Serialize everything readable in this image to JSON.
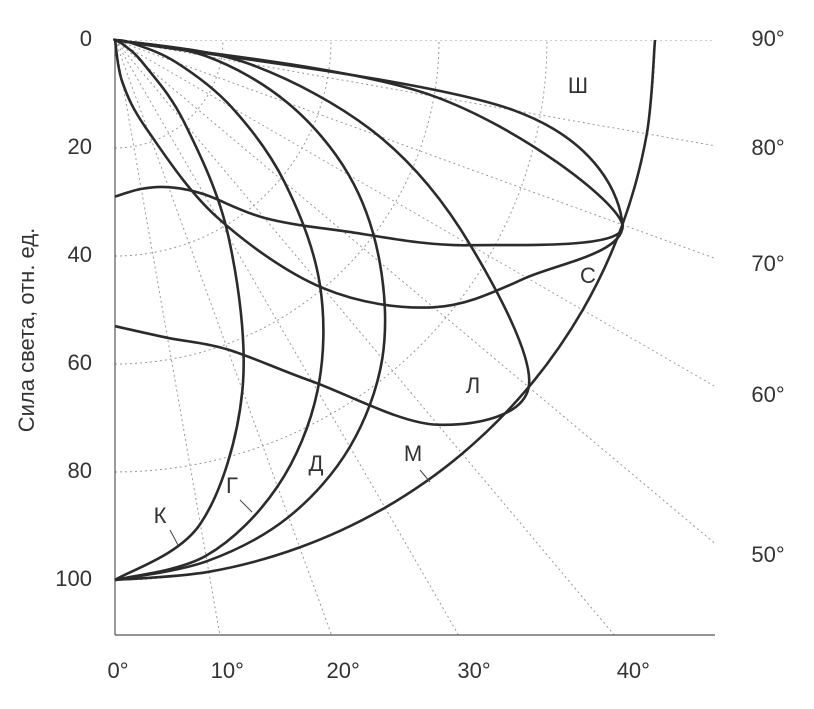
{
  "chart_data": {
    "type": "polar",
    "y_label": "Сила света, отн. ед.",
    "rlim": [
      0,
      100
    ],
    "rticks": [
      0,
      20,
      40,
      60,
      80,
      100
    ],
    "theta": [
      0,
      10,
      20,
      30,
      40,
      50,
      60,
      70,
      80,
      90
    ],
    "thetaticks": [
      {
        "value": 0,
        "label": "0°"
      },
      {
        "value": 10,
        "label": "10°"
      },
      {
        "value": 20,
        "label": "20°"
      },
      {
        "value": 30,
        "label": "30°"
      },
      {
        "value": 40,
        "label": "40°"
      },
      {
        "value": 50,
        "label": "50°"
      },
      {
        "value": 60,
        "label": "60°"
      },
      {
        "value": 70,
        "label": "70°"
      },
      {
        "value": 80,
        "label": "80°"
      },
      {
        "value": 90,
        "label": "90°"
      }
    ],
    "grid": true,
    "series": [
      {
        "name": "К",
        "color": "#2b2b2b",
        "values": [
          100,
          91,
          69,
          42,
          20,
          7,
          2,
          0,
          0,
          0
        ]
      },
      {
        "name": "Г",
        "color": "#2b2b2b",
        "values": [
          100,
          97,
          88,
          75,
          59,
          41,
          25,
          12,
          3,
          0
        ]
      },
      {
        "name": "Д",
        "color": "#2b2b2b",
        "values": [
          100,
          98,
          94,
          87,
          77,
          64,
          50,
          34,
          17,
          0
        ]
      },
      {
        "name": "М",
        "color": "#2b2b2b",
        "values": [
          100,
          100,
          100,
          100,
          100,
          100,
          100,
          100,
          100,
          100
        ]
      },
      {
        "name": "Л",
        "color": "#2b2b2b",
        "values": [
          53,
          56,
          61,
          73,
          93,
          100,
          76,
          52,
          25,
          0
        ]
      },
      {
        "name": "С",
        "color": "#2b2b2b",
        "values": [
          29,
          28,
          29,
          33,
          43,
          55,
          76,
          100,
          60,
          0
        ]
      },
      {
        "name": "Ш",
        "color": "#2b2b2b",
        "values": [
          0,
          8,
          18,
          38,
          60,
          77,
          88,
          100,
          75,
          0
        ]
      }
    ]
  }
}
